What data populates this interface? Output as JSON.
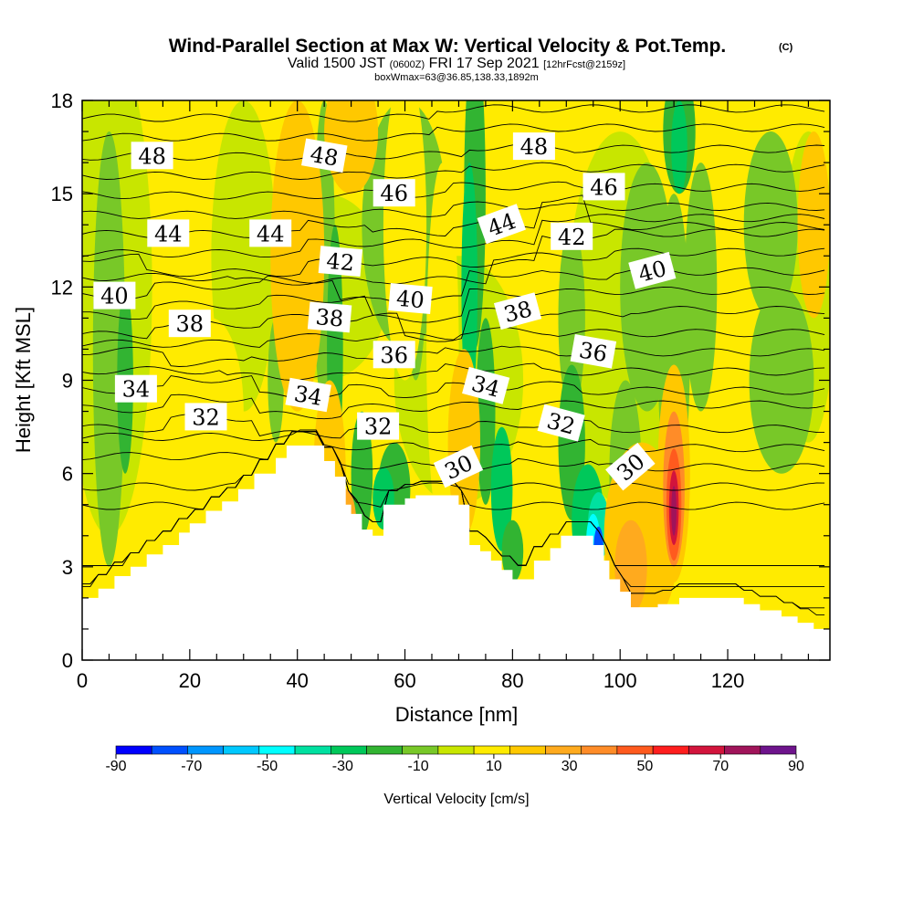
{
  "header": {
    "title": "Wind-Parallel Section at Max W: Vertical Velocity & Pot.Temp.",
    "copyright": "(C)",
    "valid_prefix": "Valid 1500 JST",
    "valid_utc": "(0600Z)",
    "valid_date": "FRI 17 Sep 2021",
    "forecast": "[12hrFcst@2159z]",
    "box_info": "boxWmax=63@36.85,138.33,1892m"
  },
  "chart_data": {
    "type": "heatmap",
    "title": "Wind-Parallel Section at Max W: Vertical Velocity & Pot.Temp.",
    "xlabel": "Distance [nm]",
    "ylabel": "Height [Kft MSL]",
    "xlim": [
      0,
      139
    ],
    "ylim": [
      0,
      18
    ],
    "x_ticks": [
      0,
      20,
      40,
      60,
      80,
      100,
      120
    ],
    "y_ticks": [
      0,
      3,
      6,
      9,
      12,
      15,
      18
    ],
    "colorbar": {
      "label": "Vertical Velocity [cm/s]",
      "tick_labels": [
        -90,
        -70,
        -50,
        -30,
        -10,
        10,
        30,
        50,
        70,
        90
      ],
      "bins": [
        {
          "from": -90,
          "to": -80,
          "color": "#0000ff"
        },
        {
          "from": -80,
          "to": -70,
          "color": "#0050ff"
        },
        {
          "from": -70,
          "to": -60,
          "color": "#0096ff"
        },
        {
          "from": -60,
          "to": -50,
          "color": "#00c8ff"
        },
        {
          "from": -50,
          "to": -40,
          "color": "#00ffff"
        },
        {
          "from": -40,
          "to": -30,
          "color": "#00e0a0"
        },
        {
          "from": -30,
          "to": -20,
          "color": "#00c85a"
        },
        {
          "from": -20,
          "to": -10,
          "color": "#32b432"
        },
        {
          "from": -10,
          "to": 0,
          "color": "#78c828"
        },
        {
          "from": 0,
          "to": 10,
          "color": "#c8e600"
        },
        {
          "from": 10,
          "to": 20,
          "color": "#ffeb00"
        },
        {
          "from": 20,
          "to": 30,
          "color": "#ffc800"
        },
        {
          "from": 30,
          "to": 40,
          "color": "#ffaa1e"
        },
        {
          "from": 40,
          "to": 50,
          "color": "#ff8c28"
        },
        {
          "from": 50,
          "to": 60,
          "color": "#ff5a1e"
        },
        {
          "from": 60,
          "to": 70,
          "color": "#ff1e1e"
        },
        {
          "from": 70,
          "to": 80,
          "color": "#d2143c"
        },
        {
          "from": 80,
          "to": 90,
          "color": "#a0145a"
        },
        {
          "from": 90,
          "to": 100,
          "color": "#6e148c"
        }
      ]
    },
    "terrain_kft": [
      [
        0,
        2.0
      ],
      [
        3,
        2.3
      ],
      [
        6,
        2.7
      ],
      [
        9,
        3.0
      ],
      [
        12,
        3.4
      ],
      [
        15,
        3.7
      ],
      [
        18,
        4.1
      ],
      [
        20,
        4.4
      ],
      [
        23,
        4.8
      ],
      [
        26,
        5.1
      ],
      [
        29,
        5.5
      ],
      [
        32,
        6.0
      ],
      [
        36,
        6.5
      ],
      [
        38,
        6.9
      ],
      [
        42,
        6.9
      ],
      [
        45,
        6.4
      ],
      [
        47,
        5.9
      ],
      [
        49,
        5.0
      ],
      [
        50,
        4.7
      ],
      [
        52,
        4.2
      ],
      [
        54,
        4.0
      ],
      [
        56,
        5.0
      ],
      [
        58,
        5.0
      ],
      [
        60,
        5.2
      ],
      [
        62,
        5.3
      ],
      [
        65,
        5.3
      ],
      [
        68,
        5.3
      ],
      [
        70,
        5.0
      ],
      [
        72,
        3.7
      ],
      [
        74,
        3.5
      ],
      [
        76,
        3.2
      ],
      [
        78,
        2.9
      ],
      [
        80,
        2.6
      ],
      [
        82,
        2.6
      ],
      [
        84,
        3.2
      ],
      [
        87,
        3.6
      ],
      [
        89,
        4.0
      ],
      [
        92,
        4.0
      ],
      [
        95,
        3.7
      ],
      [
        97,
        3.2
      ],
      [
        98,
        2.6
      ],
      [
        100,
        2.2
      ],
      [
        102,
        1.7
      ],
      [
        107,
        1.8
      ],
      [
        111,
        2.0
      ],
      [
        120,
        2.0
      ],
      [
        123,
        1.8
      ],
      [
        126,
        1.6
      ],
      [
        130,
        1.4
      ],
      [
        133,
        1.2
      ],
      [
        136,
        1.0
      ],
      [
        139,
        0.8
      ]
    ],
    "theta_contours": [
      {
        "label": "30",
        "x": 70,
        "y": 6.2
      },
      {
        "label": "30",
        "x": 102,
        "y": 6.2
      },
      {
        "label": "32",
        "x": 23,
        "y": 7.8
      },
      {
        "label": "32",
        "x": 55,
        "y": 7.5
      },
      {
        "label": "32",
        "x": 89,
        "y": 7.6
      },
      {
        "label": "34",
        "x": 10,
        "y": 8.7
      },
      {
        "label": "34",
        "x": 42,
        "y": 8.5
      },
      {
        "label": "34",
        "x": 75,
        "y": 8.8
      },
      {
        "label": "36",
        "x": 58,
        "y": 9.8
      },
      {
        "label": "36",
        "x": 95,
        "y": 9.9
      },
      {
        "label": "38",
        "x": 20,
        "y": 10.8
      },
      {
        "label": "38",
        "x": 46,
        "y": 11.0
      },
      {
        "label": "38",
        "x": 81,
        "y": 11.2
      },
      {
        "label": "40",
        "x": 6,
        "y": 11.7
      },
      {
        "label": "40",
        "x": 61,
        "y": 11.6
      },
      {
        "label": "40",
        "x": 106,
        "y": 12.5
      },
      {
        "label": "42",
        "x": 48,
        "y": 12.8
      },
      {
        "label": "42",
        "x": 91,
        "y": 13.6
      },
      {
        "label": "44",
        "x": 16,
        "y": 13.7
      },
      {
        "label": "44",
        "x": 35,
        "y": 13.7
      },
      {
        "label": "44",
        "x": 78,
        "y": 14.0
      },
      {
        "label": "46",
        "x": 58,
        "y": 15.0
      },
      {
        "label": "46",
        "x": 97,
        "y": 15.2
      },
      {
        "label": "48",
        "x": 13,
        "y": 16.2
      },
      {
        "label": "48",
        "x": 45,
        "y": 16.2
      },
      {
        "label": "48",
        "x": 84,
        "y": 16.5
      }
    ]
  }
}
